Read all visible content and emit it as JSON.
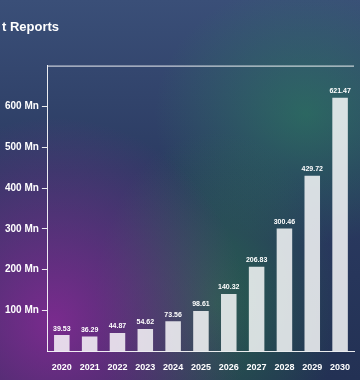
{
  "chart_data": {
    "type": "bar",
    "title": "t Reports",
    "categories": [
      "2020",
      "2021",
      "2022",
      "2023",
      "2024",
      "2025",
      "2026",
      "2027",
      "2028",
      "2029",
      "2030"
    ],
    "values": [
      39.53,
      36.29,
      44.87,
      54.62,
      73.56,
      98.61,
      140.32,
      206.83,
      300.46,
      429.72,
      621.47
    ],
    "color": "#ffffff",
    "ylim": [
      0,
      700
    ],
    "yticks": [
      {
        "value": 100,
        "label": "100 Mn"
      },
      {
        "value": 200,
        "label": "200 Mn"
      },
      {
        "value": 300,
        "label": "300 Mn"
      },
      {
        "value": 400,
        "label": "400 Mn"
      },
      {
        "value": 500,
        "label": "500 Mn"
      },
      {
        "value": 600,
        "label": "600 Mn"
      }
    ],
    "grid": false,
    "data_labels": true
  }
}
